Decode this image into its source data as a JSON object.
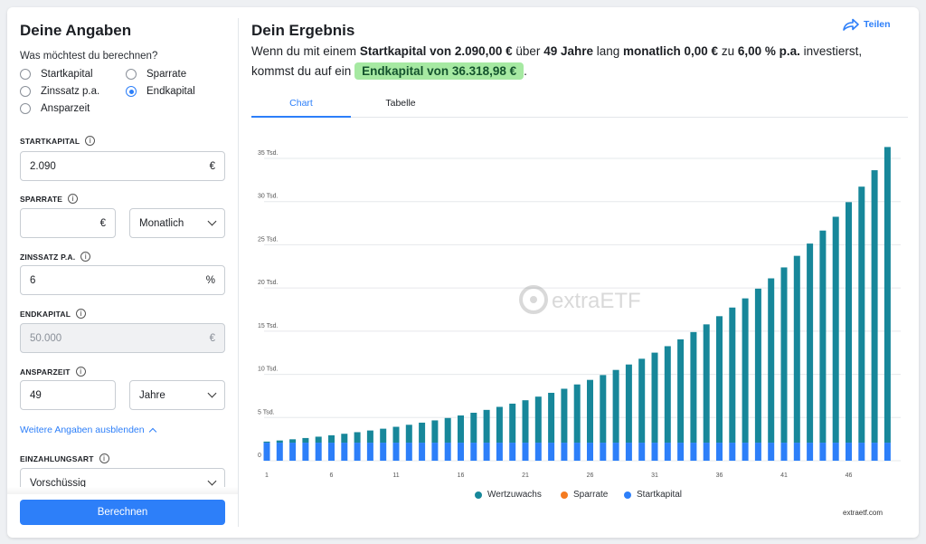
{
  "form": {
    "title": "Deine Angaben",
    "question": "Was möchtest du berechnen?",
    "options": [
      {
        "label": "Startkapital",
        "selected": false
      },
      {
        "label": "Sparrate",
        "selected": false
      },
      {
        "label": "Zinssatz p.a.",
        "selected": false
      },
      {
        "label": "Endkapital",
        "selected": true
      },
      {
        "label": "Ansparzeit",
        "selected": false
      }
    ],
    "startkapital": {
      "label": "STARTKAPITAL",
      "value": "2.090",
      "unit": "€"
    },
    "sparrate": {
      "label": "SPARRATE",
      "value": "",
      "unit": "€",
      "interval": "Monatlich"
    },
    "zinssatz": {
      "label": "ZINSSATZ P.A.",
      "value": "6",
      "unit": "%"
    },
    "endkapital": {
      "label": "ENDKAPITAL",
      "value": "50.000",
      "unit": "€"
    },
    "ansparzeit": {
      "label": "ANSPARZEIT",
      "value": "49",
      "unit": "Jahre"
    },
    "more_link": "Weitere Angaben ausblenden",
    "einzahlungsart": {
      "label": "EINZAHLUNGSART",
      "value": "Vorschüssig"
    },
    "info_glyph": "i",
    "submit_label": "Berechnen"
  },
  "result": {
    "title": "Dein Ergebnis",
    "share_label": "Teilen",
    "sentence": {
      "p1": "Wenn du mit einem ",
      "b1": "Startkapital von 2.090,00 €",
      "p2": " über ",
      "b2": "49 Jahre",
      "p3": " lang ",
      "b3": "monatlich 0,00 €",
      "p4": " zu ",
      "b4": "6,00 % p.a.",
      "p5": " investierst, kommst du auf ein ",
      "highlight": "Endkapital von 36.318,98 €",
      "p6": "."
    },
    "tabs": [
      "Chart",
      "Tabelle"
    ],
    "active_tab": "Chart",
    "watermark": "extraETF",
    "credit": "extraetf.com"
  },
  "colors": {
    "accent": "#2d7ff9",
    "wertzuwachs": "#17879a",
    "sparrate": "#f47b20",
    "startkapital": "#2d7ff9",
    "highlight_bg": "#a6e9a2"
  },
  "chart_data": {
    "type": "bar",
    "stacked": true,
    "x": [
      1,
      2,
      3,
      4,
      5,
      6,
      7,
      8,
      9,
      10,
      11,
      12,
      13,
      14,
      15,
      16,
      17,
      18,
      19,
      20,
      21,
      22,
      23,
      24,
      25,
      26,
      27,
      28,
      29,
      30,
      31,
      32,
      33,
      34,
      35,
      36,
      37,
      38,
      39,
      40,
      41,
      42,
      43,
      44,
      45,
      46,
      47,
      48,
      49
    ],
    "x_tick_labels": [
      "1",
      "6",
      "11",
      "16",
      "21",
      "26",
      "31",
      "36",
      "41",
      "46"
    ],
    "y_tick_labels": [
      "0",
      "5 Tsd.",
      "10 Tsd.",
      "15 Tsd.",
      "20 Tsd.",
      "25 Tsd.",
      "30 Tsd.",
      "35 Tsd."
    ],
    "ylim": [
      0,
      35000
    ],
    "series": [
      {
        "name": "Wertzuwachs",
        "values": [
          125,
          254,
          392,
          538,
          693,
          857,
          1031,
          1215,
          1411,
          1618,
          1838,
          2071,
          2318,
          2580,
          2857,
          3152,
          3464,
          3795,
          4146,
          4518,
          4912,
          5330,
          5773,
          6243,
          6741,
          7269,
          7828,
          8421,
          9050,
          9716,
          10422,
          11171,
          11964,
          12806,
          13697,
          14642,
          15644,
          16706,
          17831,
          19024,
          20289,
          21630,
          23051,
          24557,
          26154,
          27846,
          29640,
          31542,
          34229
        ]
      },
      {
        "name": "Sparrate",
        "values": [
          0,
          0,
          0,
          0,
          0,
          0,
          0,
          0,
          0,
          0,
          0,
          0,
          0,
          0,
          0,
          0,
          0,
          0,
          0,
          0,
          0,
          0,
          0,
          0,
          0,
          0,
          0,
          0,
          0,
          0,
          0,
          0,
          0,
          0,
          0,
          0,
          0,
          0,
          0,
          0,
          0,
          0,
          0,
          0,
          0,
          0,
          0,
          0,
          0
        ]
      },
      {
        "name": "Startkapital",
        "values": [
          2090,
          2090,
          2090,
          2090,
          2090,
          2090,
          2090,
          2090,
          2090,
          2090,
          2090,
          2090,
          2090,
          2090,
          2090,
          2090,
          2090,
          2090,
          2090,
          2090,
          2090,
          2090,
          2090,
          2090,
          2090,
          2090,
          2090,
          2090,
          2090,
          2090,
          2090,
          2090,
          2090,
          2090,
          2090,
          2090,
          2090,
          2090,
          2090,
          2090,
          2090,
          2090,
          2090,
          2090,
          2090,
          2090,
          2090,
          2090,
          2090
        ]
      }
    ],
    "legend": [
      "Wertzuwachs",
      "Sparrate",
      "Startkapital"
    ],
    "legend_position": "bottom",
    "grid": true
  }
}
